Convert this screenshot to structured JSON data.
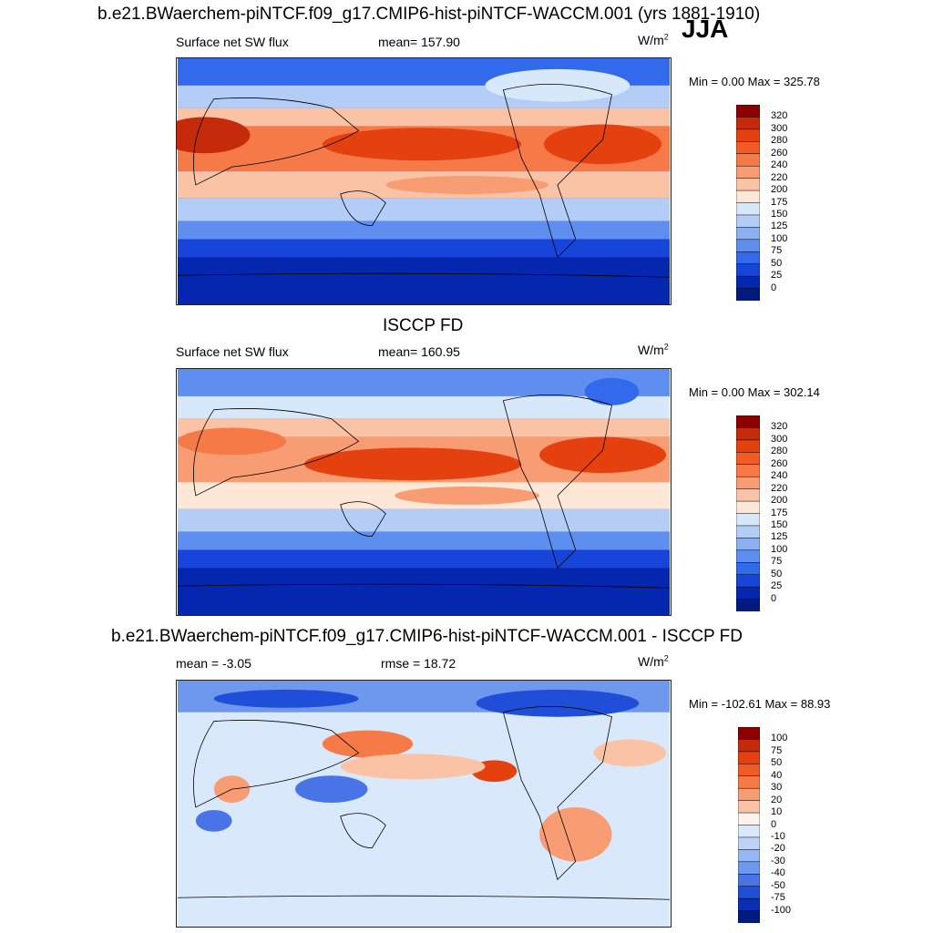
{
  "season": "JJA",
  "panels": [
    {
      "title": "b.e21.BWaerchem-piNTCF.f09_g17.CMIP6-hist-piNTCF-WACCM.001 (yrs 1881-1910)",
      "left_label": "Surface net SW flux",
      "mid_label": "mean= 157.90",
      "units_base": "W/m",
      "units_exp": "2",
      "minmax": "Min =   0.00 Max = 325.78",
      "colorbar": {
        "levels": [
          "320",
          "300",
          "280",
          "260",
          "240",
          "220",
          "200",
          "175",
          "150",
          "125",
          "100",
          "75",
          "50",
          "25",
          "0"
        ],
        "colors": [
          "#8b0000",
          "#c52a0a",
          "#e4410e",
          "#f25a26",
          "#f57a48",
          "#f89c74",
          "#fbc3a6",
          "#fde8d8",
          "#d8e8fb",
          "#b4cdf6",
          "#8cb0f1",
          "#5d8ef0",
          "#3369eb",
          "#1745d9",
          "#0527b0",
          "#001a80"
        ]
      }
    },
    {
      "title": "ISCCP FD",
      "left_label": "Surface net SW flux",
      "mid_label": "mean= 160.95",
      "units_base": "W/m",
      "units_exp": "2",
      "minmax": "Min =   0.00 Max = 302.14",
      "colorbar": {
        "levels": [
          "320",
          "300",
          "280",
          "260",
          "240",
          "220",
          "200",
          "175",
          "150",
          "125",
          "100",
          "75",
          "50",
          "25",
          "0"
        ],
        "colors": [
          "#8b0000",
          "#c52a0a",
          "#e4410e",
          "#f25a26",
          "#f57a48",
          "#f89c74",
          "#fbc3a6",
          "#fde8d8",
          "#d8e8fb",
          "#b4cdf6",
          "#8cb0f1",
          "#5d8ef0",
          "#3369eb",
          "#1745d9",
          "#0527b0",
          "#001a80"
        ]
      }
    },
    {
      "title": "b.e21.BWaerchem-piNTCF.f09_g17.CMIP6-hist-piNTCF-WACCM.001 - ISCCP FD",
      "left_label": "mean =  -3.05",
      "mid_label": "rmse =  18.72",
      "units_base": "W/m",
      "units_exp": "2",
      "minmax": "Min = -102.61 Max =  88.93",
      "colorbar": {
        "levels": [
          "100",
          "75",
          "50",
          "40",
          "30",
          "20",
          "10",
          "0",
          "-10",
          "-20",
          "-30",
          "-40",
          "-50",
          "-75",
          "-100"
        ],
        "colors": [
          "#8b0000",
          "#c52a0a",
          "#e4410e",
          "#f25a26",
          "#f57a48",
          "#f89c74",
          "#fbc3a6",
          "#fff2ea",
          "#d9e9fb",
          "#bcd3f7",
          "#97b7f2",
          "#6e98ee",
          "#4874e8",
          "#1f4ed9",
          "#0a2fb6",
          "#001a80"
        ]
      }
    }
  ]
}
